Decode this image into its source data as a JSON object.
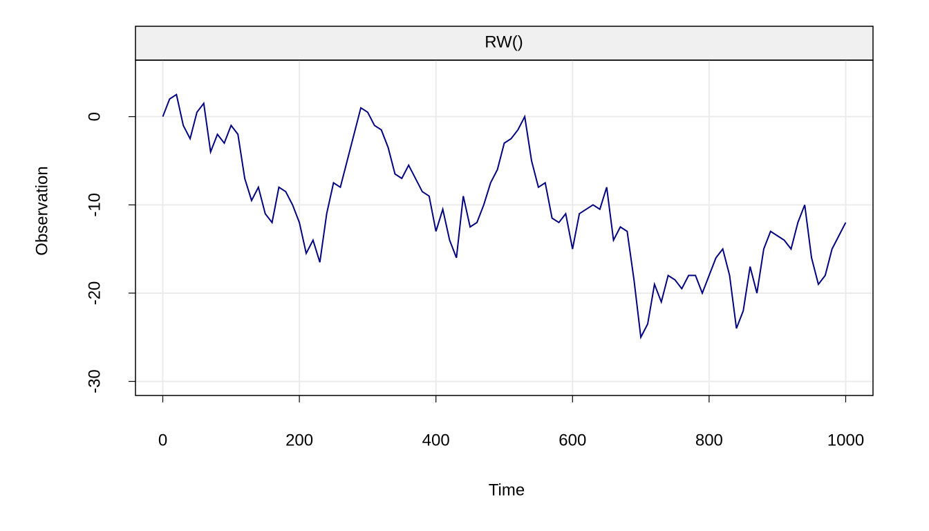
{
  "chart_data": {
    "type": "line",
    "title": "RW()",
    "x_label": "Time",
    "y_label": "Observation",
    "x": [
      0,
      10,
      20,
      30,
      40,
      50,
      60,
      70,
      80,
      90,
      100,
      110,
      120,
      130,
      140,
      150,
      160,
      170,
      180,
      190,
      200,
      210,
      220,
      230,
      240,
      250,
      260,
      270,
      280,
      290,
      300,
      310,
      320,
      330,
      340,
      350,
      360,
      370,
      380,
      390,
      400,
      410,
      420,
      430,
      440,
      450,
      460,
      470,
      480,
      490,
      500,
      510,
      520,
      530,
      540,
      550,
      560,
      570,
      580,
      590,
      600,
      610,
      620,
      630,
      640,
      650,
      660,
      670,
      680,
      690,
      700,
      710,
      720,
      730,
      740,
      750,
      760,
      770,
      780,
      790,
      800,
      810,
      820,
      830,
      840,
      850,
      860,
      870,
      880,
      890,
      900,
      910,
      920,
      930,
      940,
      950,
      960,
      970,
      980,
      990,
      1000
    ],
    "series": [
      {
        "name": "RW()",
        "color": "#000080",
        "values": [
          0,
          2,
          2.5,
          -1,
          -2.5,
          0.5,
          1.5,
          -4,
          -2,
          -3,
          -1,
          -2,
          -7,
          -9.5,
          -8,
          -11,
          -12,
          -8,
          -8.5,
          -10,
          -12,
          -15.5,
          -14,
          -16.5,
          -11,
          -7.5,
          -8,
          -5,
          -2,
          1,
          0.5,
          -1,
          -1.5,
          -3.5,
          -6.5,
          -7,
          -5.5,
          -7,
          -8.5,
          -9,
          -13,
          -10.5,
          -14,
          -16,
          -9,
          -12.5,
          -12,
          -10,
          -7.5,
          -6,
          -3,
          -2.5,
          -1.5,
          0,
          -5,
          -8,
          -7.5,
          -11.5,
          -12,
          -11,
          -15,
          -11,
          -10.5,
          -10,
          -10.5,
          -8,
          -14,
          -12.5,
          -13,
          -18.5,
          -25,
          -23.5,
          -19,
          -21,
          -18,
          -18.5,
          -19.5,
          -18,
          -18,
          -20,
          -18,
          -16,
          -15,
          -18,
          -24,
          -22,
          -17,
          -20,
          -15,
          -13,
          -13.5,
          -14,
          -15,
          -12,
          -10,
          -16,
          -19,
          -18,
          -15,
          -13.5,
          -12
        ]
      }
    ],
    "xlim": [
      -40,
      1040
    ],
    "ylim": [
      -31.6,
      6.4
    ],
    "xticks": [
      0,
      200,
      400,
      600,
      800,
      1000
    ],
    "yticks": [
      -30,
      -20,
      -10,
      0
    ],
    "grid": true
  }
}
